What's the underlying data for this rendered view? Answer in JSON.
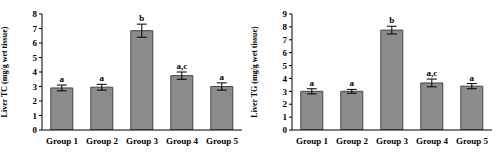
{
  "chart_data": [
    {
      "type": "bar",
      "y_label": "Liver TC (mg/g wet tissue)",
      "categories": [
        "Group 1",
        "Group 2",
        "Group 3",
        "Group 4",
        "Group 5"
      ],
      "values": [
        2.9,
        2.95,
        6.85,
        3.75,
        3.0
      ],
      "errors": [
        0.2,
        0.2,
        0.45,
        0.25,
        0.25
      ],
      "annotations": [
        "a",
        "a",
        "b",
        "a,c",
        "a"
      ],
      "color": "#8c8c8c",
      "grid": false,
      "ylim": [
        0,
        8
      ],
      "yticks": [
        0,
        1,
        2,
        3,
        4,
        5,
        6,
        7,
        8
      ]
    },
    {
      "type": "bar",
      "y_label": "Liver TG (mg/g wet tissue)",
      "categories": [
        "Group 1",
        "Group 2",
        "Group 3",
        "Group 4",
        "Group 5"
      ],
      "values": [
        3.0,
        3.0,
        7.75,
        3.65,
        3.4
      ],
      "errors": [
        0.2,
        0.15,
        0.3,
        0.3,
        0.2
      ],
      "annotations": [
        "a",
        "a",
        "b",
        "a,c",
        "a"
      ],
      "color": "#8c8c8c",
      "grid": false,
      "ylim": [
        0,
        9
      ],
      "yticks": [
        0,
        1,
        2,
        3,
        4,
        5,
        6,
        7,
        8,
        9
      ]
    }
  ]
}
